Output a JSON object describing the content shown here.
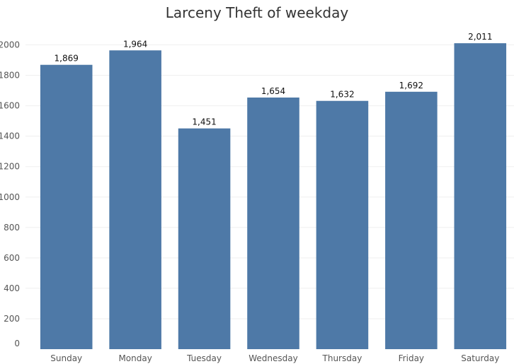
{
  "chart_data": {
    "type": "bar",
    "title": "Larceny Theft of weekday",
    "xlabel": "",
    "ylabel": "",
    "categories": [
      "Sunday",
      "Monday",
      "Tuesday",
      "Wednesday",
      "Thursday",
      "Friday",
      "Saturday"
    ],
    "values": [
      1869,
      1964,
      1451,
      1654,
      1632,
      1692,
      2011
    ],
    "value_labels": [
      "1,869",
      "1,964",
      "1,451",
      "1,654",
      "1,632",
      "1,692",
      "2,011"
    ],
    "ylim": [
      0,
      2100
    ],
    "yticks": [
      0,
      200,
      400,
      600,
      800,
      1000,
      1200,
      1400,
      1600,
      1800,
      2000
    ],
    "grid": true,
    "colors": {
      "bar": "#4e79a7",
      "grid": "#efefef"
    }
  }
}
